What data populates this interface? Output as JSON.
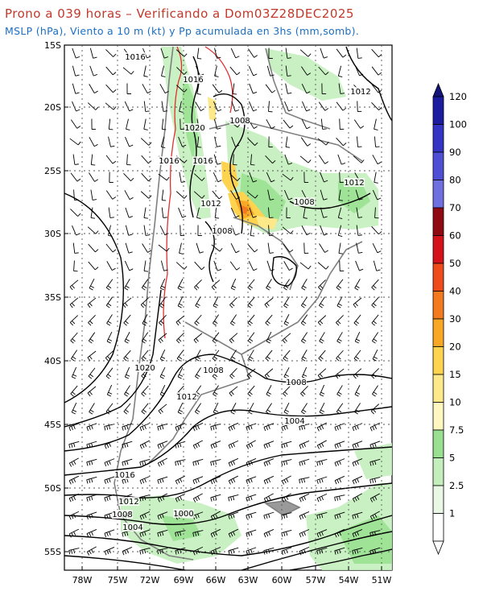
{
  "header": {
    "title": "Prono a 039 horas – Verificando a Dom03Z28DEC2025",
    "subtitle": "MSLP (hPa), Viento a 10 m (kt) y Pp acumulada en 3hs (mm,somb)."
  },
  "map": {
    "lat_labels": [
      "15S",
      "20S",
      "25S",
      "30S",
      "35S",
      "40S",
      "45S",
      "50S",
      "55S"
    ],
    "lon_labels": [
      "78W",
      "75W",
      "72W",
      "69W",
      "66W",
      "63W",
      "60W",
      "57W",
      "54W",
      "51W"
    ],
    "isobar_labels": [
      "1016",
      "1016",
      "1012",
      "1008",
      "1020",
      "1016",
      "1016",
      "1012",
      "1012",
      "1008",
      "1008",
      "1020",
      "1008",
      "1008",
      "1012",
      "1004",
      "1016",
      "1012",
      "1008",
      "1004",
      "1000"
    ]
  },
  "colorbar": {
    "labels": [
      "1",
      "2.5",
      "5",
      "7.5",
      "10",
      "15",
      "20",
      "30",
      "40",
      "50",
      "60",
      "70",
      "80",
      "90",
      "100",
      "120"
    ],
    "colors": [
      "#ffffff",
      "#e8f8e4",
      "#c4efbd",
      "#98e08f",
      "#fff6c0",
      "#fde98a",
      "#fdd350",
      "#f9a825",
      "#f47a1f",
      "#ef4a1a",
      "#d4121a",
      "#8e0a10",
      "#6f6fe0",
      "#4f4fd6",
      "#3434c4",
      "#1c1c9e"
    ],
    "top_color": "#14147a"
  }
}
